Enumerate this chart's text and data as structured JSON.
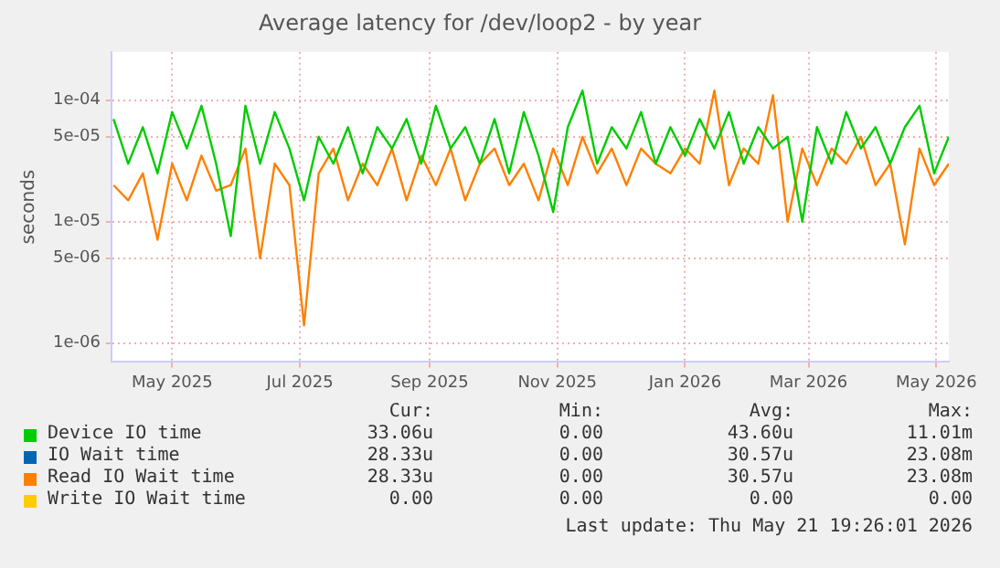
{
  "chart_data": {
    "type": "line",
    "title": "Average latency for /dev/loop2 - by year",
    "ylabel": "seconds",
    "log": "y",
    "grid": true,
    "legend": "bottom",
    "marker": "none",
    "line_style": "solid",
    "x": [
      "2025-04-03",
      "2025-04-10",
      "2025-04-17",
      "2025-04-24",
      "2025-05-01",
      "2025-05-08",
      "2025-05-15",
      "2025-05-22",
      "2025-05-29",
      "2025-06-05",
      "2025-06-12",
      "2025-06-19",
      "2025-06-26",
      "2025-07-03",
      "2025-07-10",
      "2025-07-17",
      "2025-07-24",
      "2025-07-31",
      "2025-08-07",
      "2025-08-14",
      "2025-08-21",
      "2025-08-28",
      "2025-09-04",
      "2025-09-11",
      "2025-09-18",
      "2025-09-25",
      "2025-10-02",
      "2025-10-09",
      "2025-10-16",
      "2025-10-23",
      "2025-10-30",
      "2025-11-06",
      "2025-11-13",
      "2025-11-20",
      "2025-11-27",
      "2025-12-04",
      "2025-12-11",
      "2025-12-18",
      "2025-12-25",
      "2026-01-01",
      "2026-01-08",
      "2026-01-15",
      "2026-01-22",
      "2026-01-29",
      "2026-02-05",
      "2026-02-12",
      "2026-02-19",
      "2026-02-26",
      "2026-03-05",
      "2026-03-12",
      "2026-03-19",
      "2026-03-26",
      "2026-04-02",
      "2026-04-09",
      "2026-04-16",
      "2026-04-23",
      "2026-04-30",
      "2026-05-07"
    ],
    "xlim": [
      "2025-04-02",
      "2026-05-07"
    ],
    "xticks": [
      {
        "value": "2025-05-01",
        "label": "May 2025"
      },
      {
        "value": "2025-07-01",
        "label": "Jul 2025"
      },
      {
        "value": "2025-09-01",
        "label": "Sep 2025"
      },
      {
        "value": "2025-11-01",
        "label": "Nov 2025"
      },
      {
        "value": "2026-01-01",
        "label": "Jan 2026"
      },
      {
        "value": "2026-03-01",
        "label": "Mar 2026"
      },
      {
        "value": "2026-05-01",
        "label": "May 2026"
      }
    ],
    "ylim": [
      7e-07,
      0.00025
    ],
    "yticks": [
      {
        "value": 1e-06,
        "label": "1e-06"
      },
      {
        "value": 5e-06,
        "label": "5e-06"
      },
      {
        "value": 1e-05,
        "label": "1e-05"
      },
      {
        "value": 5e-05,
        "label": "5e-05"
      },
      {
        "value": 0.0001,
        "label": "1e-04"
      }
    ],
    "series": [
      {
        "name": "Device IO time",
        "color": "#00cc00",
        "values": [
          7e-05,
          3e-05,
          6e-05,
          2.5e-05,
          8e-05,
          4e-05,
          9e-05,
          3e-05,
          7.6e-06,
          9e-05,
          3e-05,
          8e-05,
          4e-05,
          1.5e-05,
          5e-05,
          3e-05,
          6e-05,
          2.5e-05,
          6e-05,
          4e-05,
          7e-05,
          3e-05,
          9e-05,
          4e-05,
          6e-05,
          3e-05,
          7e-05,
          2.5e-05,
          8e-05,
          3.5e-05,
          1.2e-05,
          6e-05,
          0.00012,
          3e-05,
          6e-05,
          4e-05,
          8e-05,
          3e-05,
          6e-05,
          3.5e-05,
          7e-05,
          4e-05,
          8e-05,
          3e-05,
          6e-05,
          4e-05,
          5e-05,
          1e-05,
          6e-05,
          3e-05,
          8e-05,
          4e-05,
          6e-05,
          3e-05,
          6e-05,
          9e-05,
          2.5e-05,
          5e-05
        ]
      },
      {
        "name": "IO Wait time",
        "color": "#0066b3",
        "values": [
          null,
          null,
          null,
          null,
          null,
          null,
          null,
          null,
          null,
          null,
          null,
          null,
          null,
          null,
          null,
          null,
          null,
          null,
          null,
          null,
          null,
          null,
          null,
          null,
          null,
          null,
          null,
          null,
          null,
          null,
          null,
          null,
          null,
          null,
          null,
          null,
          null,
          null,
          null,
          null,
          null,
          null,
          null,
          null,
          null,
          null,
          null,
          null,
          null,
          null,
          null,
          null,
          null,
          null,
          null,
          null,
          null,
          null
        ]
      },
      {
        "name": "Read IO Wait time",
        "color": "#ff8000",
        "values": [
          2e-05,
          1.5e-05,
          2.5e-05,
          7.1e-06,
          3e-05,
          1.5e-05,
          3.5e-05,
          1.8e-05,
          2e-05,
          4e-05,
          5e-06,
          3e-05,
          2e-05,
          1.4e-06,
          2.5e-05,
          4e-05,
          1.5e-05,
          3e-05,
          2e-05,
          4e-05,
          1.5e-05,
          3.5e-05,
          2e-05,
          4e-05,
          1.5e-05,
          3e-05,
          4e-05,
          2e-05,
          3e-05,
          1.5e-05,
          4e-05,
          2e-05,
          5e-05,
          2.5e-05,
          4e-05,
          2e-05,
          4e-05,
          3e-05,
          2.5e-05,
          4e-05,
          3e-05,
          0.00012,
          2e-05,
          4e-05,
          3e-05,
          0.00011,
          1e-05,
          4e-05,
          2e-05,
          4e-05,
          3e-05,
          5e-05,
          2e-05,
          3e-05,
          6.5e-06,
          4e-05,
          2e-05,
          3e-05
        ]
      },
      {
        "name": "Write IO Wait time",
        "color": "#ffcc00",
        "values": [
          null,
          null,
          null,
          null,
          null,
          null,
          null,
          null,
          null,
          null,
          null,
          null,
          null,
          null,
          null,
          null,
          null,
          null,
          null,
          null,
          null,
          null,
          null,
          null,
          null,
          null,
          null,
          null,
          null,
          null,
          null,
          null,
          null,
          null,
          null,
          null,
          null,
          null,
          null,
          null,
          null,
          null,
          null,
          null,
          null,
          null,
          null,
          null,
          null,
          null,
          null,
          null,
          null,
          null,
          null,
          null,
          null,
          null
        ]
      }
    ],
    "annotations": [
      "Cur:",
      "Min:",
      "Avg:",
      "Max:",
      "33.06u",
      "0.00",
      "43.60u",
      "11.01m",
      "28.33u",
      "0.00",
      "30.57u",
      "23.08m",
      "28.33u",
      "0.00",
      "30.57u",
      "23.08m",
      "0.00",
      "0.00",
      "0.00",
      "0.00",
      "Last update: Thu May 21 19:26:01 2026"
    ]
  }
}
